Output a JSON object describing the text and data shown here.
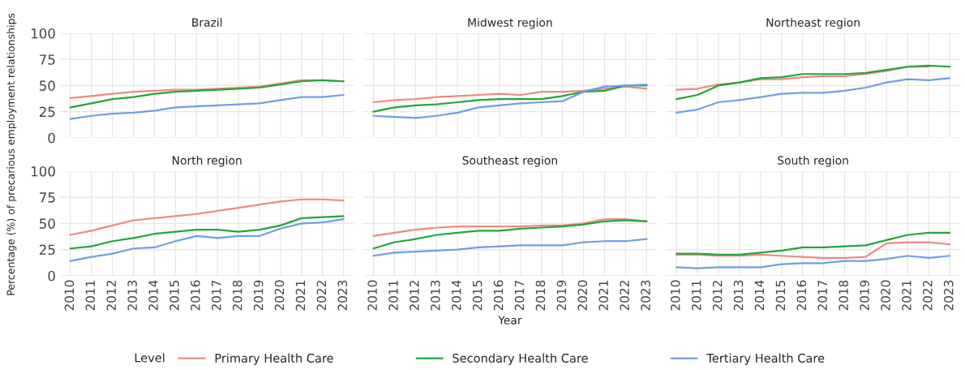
{
  "chart_data": [
    {
      "type": "line",
      "title": "Brazil",
      "ylabel": "Percentage (%) of precarious employment relationships",
      "legend": "bottom",
      "legend_title": "Level",
      "categories": [
        "2010",
        "2011",
        "2012",
        "2013",
        "2014",
        "2015",
        "2016",
        "2017",
        "2018",
        "2019",
        "2020",
        "2021",
        "2022",
        "2023"
      ],
      "ylim": [
        0,
        100
      ],
      "yticks": [
        0,
        25,
        50,
        75,
        100
      ],
      "grid": true,
      "tick_labels": "y",
      "series": [
        {
          "name": "Primary Health Care",
          "color": "#ef8a80",
          "values": [
            38,
            40,
            42,
            44,
            45,
            46,
            46,
            47,
            48,
            49,
            52,
            55,
            55,
            54
          ]
        },
        {
          "name": "Secondary Health Care",
          "color": "#22a63a",
          "values": [
            29,
            33,
            37,
            39,
            42,
            44,
            45,
            46,
            47,
            48,
            51,
            54,
            55,
            54
          ]
        },
        {
          "name": "Tertiary Health Care",
          "color": "#6f9fe6",
          "values": [
            18,
            21,
            23,
            24,
            26,
            29,
            30,
            31,
            32,
            33,
            36,
            39,
            39,
            41
          ]
        }
      ]
    },
    {
      "type": "line",
      "title": "Midwest region",
      "categories": [
        "2010",
        "2011",
        "2012",
        "2013",
        "2014",
        "2015",
        "2016",
        "2017",
        "2018",
        "2019",
        "2020",
        "2021",
        "2022",
        "2023"
      ],
      "ylim": [
        0,
        100
      ],
      "yticks": [
        0,
        25,
        50,
        75,
        100
      ],
      "grid": true,
      "tick_labels": false,
      "series": [
        {
          "color": "#ef8a80",
          "values": [
            34,
            36,
            37,
            39,
            40,
            41,
            42,
            41,
            44,
            44,
            45,
            47,
            49,
            47
          ]
        },
        {
          "color": "#22a63a",
          "values": [
            25,
            29,
            31,
            32,
            34,
            36,
            37,
            37,
            37,
            40,
            44,
            45,
            50,
            50
          ]
        },
        {
          "color": "#6f9fe6",
          "values": [
            21,
            20,
            19,
            21,
            24,
            29,
            31,
            33,
            34,
            35,
            44,
            49,
            50,
            51
          ]
        }
      ]
    },
    {
      "type": "line",
      "title": "Northeast region",
      "categories": [
        "2010",
        "2011",
        "2012",
        "2013",
        "2014",
        "2015",
        "2016",
        "2017",
        "2018",
        "2019",
        "2020",
        "2021",
        "2022",
        "2023"
      ],
      "ylim": [
        0,
        100
      ],
      "yticks": [
        0,
        25,
        50,
        75,
        100
      ],
      "grid": true,
      "tick_labels": false,
      "series": [
        {
          "color": "#ef8a80",
          "values": [
            46,
            47,
            51,
            53,
            56,
            56,
            58,
            59,
            59,
            61,
            64,
            68,
            68,
            null
          ]
        },
        {
          "color": "#22a63a",
          "values": [
            37,
            41,
            50,
            53,
            57,
            58,
            61,
            61,
            61,
            62,
            65,
            68,
            69,
            68
          ]
        },
        {
          "color": "#6f9fe6",
          "values": [
            24,
            27,
            34,
            36,
            39,
            42,
            43,
            43,
            45,
            48,
            53,
            56,
            55,
            57
          ]
        }
      ]
    },
    {
      "type": "line",
      "title": "North region",
      "categories": [
        "2010",
        "2011",
        "2012",
        "2013",
        "2014",
        "2015",
        "2016",
        "2017",
        "2018",
        "2019",
        "2020",
        "2021",
        "2022",
        "2023"
      ],
      "ylim": [
        0,
        100
      ],
      "yticks": [
        0,
        25,
        50,
        75,
        100
      ],
      "grid": true,
      "series": [
        {
          "color": "#ef8a80",
          "values": [
            39,
            43,
            48,
            53,
            55,
            57,
            59,
            62,
            65,
            68,
            71,
            73,
            73,
            72
          ]
        },
        {
          "color": "#22a63a",
          "values": [
            26,
            28,
            33,
            36,
            40,
            42,
            44,
            44,
            42,
            44,
            48,
            55,
            56,
            57
          ]
        },
        {
          "color": "#6f9fe6",
          "values": [
            14,
            18,
            21,
            26,
            27,
            33,
            38,
            36,
            38,
            38,
            45,
            50,
            51,
            54
          ]
        }
      ]
    },
    {
      "type": "line",
      "title": "Southeast region",
      "xlabel": "Year",
      "categories": [
        "2010",
        "2011",
        "2012",
        "2013",
        "2014",
        "2015",
        "2016",
        "2017",
        "2018",
        "2019",
        "2020",
        "2021",
        "2022",
        "2023"
      ],
      "ylim": [
        0,
        100
      ],
      "yticks": [
        0,
        25,
        50,
        75,
        100
      ],
      "grid": true,
      "tick_labels": "x",
      "series": [
        {
          "color": "#ef8a80",
          "values": [
            38,
            41,
            44,
            46,
            47,
            47,
            47,
            47,
            48,
            48,
            50,
            54,
            54,
            52
          ]
        },
        {
          "color": "#22a63a",
          "values": [
            26,
            32,
            35,
            39,
            41,
            43,
            43,
            45,
            46,
            47,
            49,
            52,
            53,
            52
          ]
        },
        {
          "color": "#6f9fe6",
          "values": [
            19,
            22,
            23,
            24,
            25,
            27,
            28,
            29,
            29,
            29,
            32,
            33,
            33,
            35
          ]
        }
      ]
    },
    {
      "type": "line",
      "title": "South region",
      "categories": [
        "2010",
        "2011",
        "2012",
        "2013",
        "2014",
        "2015",
        "2016",
        "2017",
        "2018",
        "2019",
        "2020",
        "2021",
        "2022",
        "2023"
      ],
      "ylim": [
        0,
        100
      ],
      "yticks": [
        0,
        25,
        50,
        75,
        100
      ],
      "grid": true,
      "tick_labels": "x",
      "series": [
        {
          "color": "#ef8a80",
          "values": [
            20,
            20,
            19,
            19,
            20,
            19,
            18,
            17,
            17,
            18,
            31,
            32,
            32,
            30
          ]
        },
        {
          "color": "#22a63a",
          "values": [
            21,
            21,
            20,
            20,
            22,
            24,
            27,
            27,
            28,
            29,
            34,
            39,
            41,
            41
          ]
        },
        {
          "color": "#6f9fe6",
          "values": [
            8,
            7,
            8,
            8,
            8,
            11,
            12,
            12,
            14,
            14,
            16,
            19,
            17,
            19
          ]
        }
      ]
    }
  ]
}
